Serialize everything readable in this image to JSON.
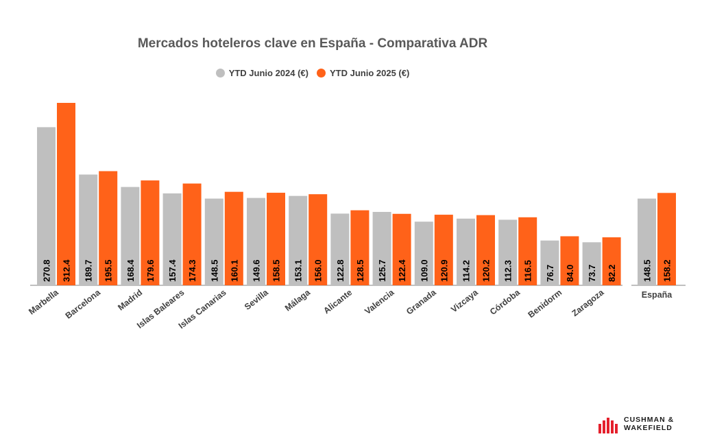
{
  "colors": {
    "series_2024": "#BFBFBF",
    "series_2025": "#FF6219",
    "axis": "#7F7F7F",
    "label": "#000000",
    "brand": "#E4202C"
  },
  "chart_data": {
    "type": "bar",
    "title": "Mercados hoteleros clave en España - Comparativa ADR",
    "xlabel": "",
    "ylabel": "",
    "ylim": [
      0,
      320
    ],
    "grid": false,
    "legend_position": "top",
    "categories": [
      "Marbella",
      "Barcelona",
      "Madrid",
      "Islas Baleares",
      "Islas Canarias",
      "Sevilla",
      "Málaga",
      "Alicante",
      "Valencia",
      "Granada",
      "Vizcaya",
      "Córdoba",
      "Benidorm",
      "Zaragoza"
    ],
    "series": [
      {
        "name": "YTD Junio 2024 (€)",
        "values": [
          270.8,
          189.7,
          168.4,
          157.4,
          148.5,
          149.6,
          153.1,
          122.8,
          125.7,
          109.0,
          114.2,
          112.3,
          76.7,
          73.7
        ]
      },
      {
        "name": "YTD Junio 2025 (€)",
        "values": [
          312.4,
          195.5,
          179.6,
          174.3,
          160.1,
          158.5,
          156.0,
          128.5,
          122.4,
          120.9,
          120.2,
          116.5,
          84.0,
          82.2
        ]
      }
    ],
    "total": {
      "category": "España",
      "values": [
        148.5,
        158.2
      ]
    }
  },
  "logo": {
    "line1": "CUSHMAN &",
    "line2": "WAKEFIELD"
  }
}
